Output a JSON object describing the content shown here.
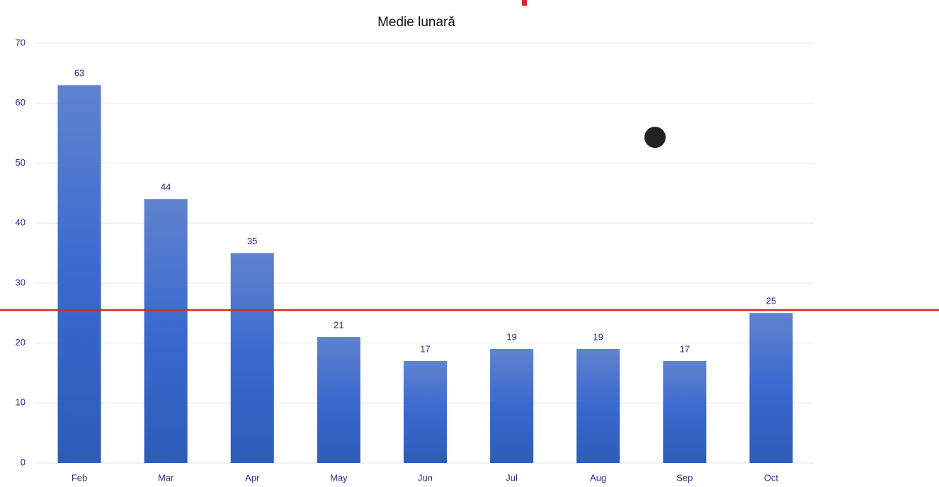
{
  "chart_data": {
    "type": "bar",
    "title": "Medie lunară",
    "categories": [
      "Feb",
      "Mar",
      "Apr",
      "May",
      "Jun",
      "Jul",
      "Aug",
      "Sep",
      "Oct"
    ],
    "values": [
      63,
      44,
      35,
      21,
      17,
      19,
      19,
      17,
      25
    ],
    "color": "#3f6ccc",
    "ylim": [
      0,
      70
    ],
    "yticks": [
      0,
      10,
      20,
      30,
      40,
      50,
      60,
      70
    ],
    "grid": true,
    "reference_line": {
      "value": 25.5,
      "color": "#e02424"
    }
  }
}
